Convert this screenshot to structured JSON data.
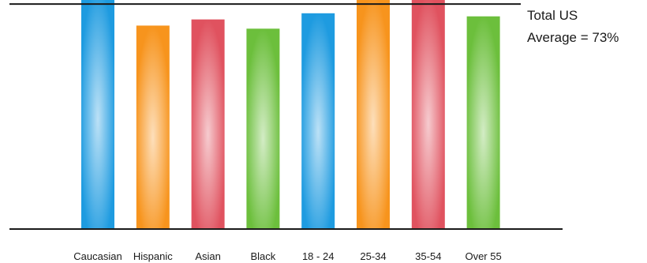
{
  "chart_data": {
    "type": "bar",
    "categories": [
      "Caucasian",
      "Hispanic",
      "Asian",
      "Black",
      "18 - 24",
      "25-34",
      "35-54",
      "Over 55"
    ],
    "values": [
      79,
      66,
      68,
      65,
      70,
      76,
      76,
      69
    ],
    "ylim": [
      0,
      82
    ],
    "reference_line": {
      "value": 73,
      "label_lines": [
        "Total US",
        "Average = 73%"
      ]
    },
    "bar_colors": [
      "#1e9be0",
      "#f7941d",
      "#e0525f",
      "#6cbf3c",
      "#1e9be0",
      "#f7941d",
      "#e0525f",
      "#6cbf3c"
    ],
    "grid": false,
    "legend": "none"
  }
}
